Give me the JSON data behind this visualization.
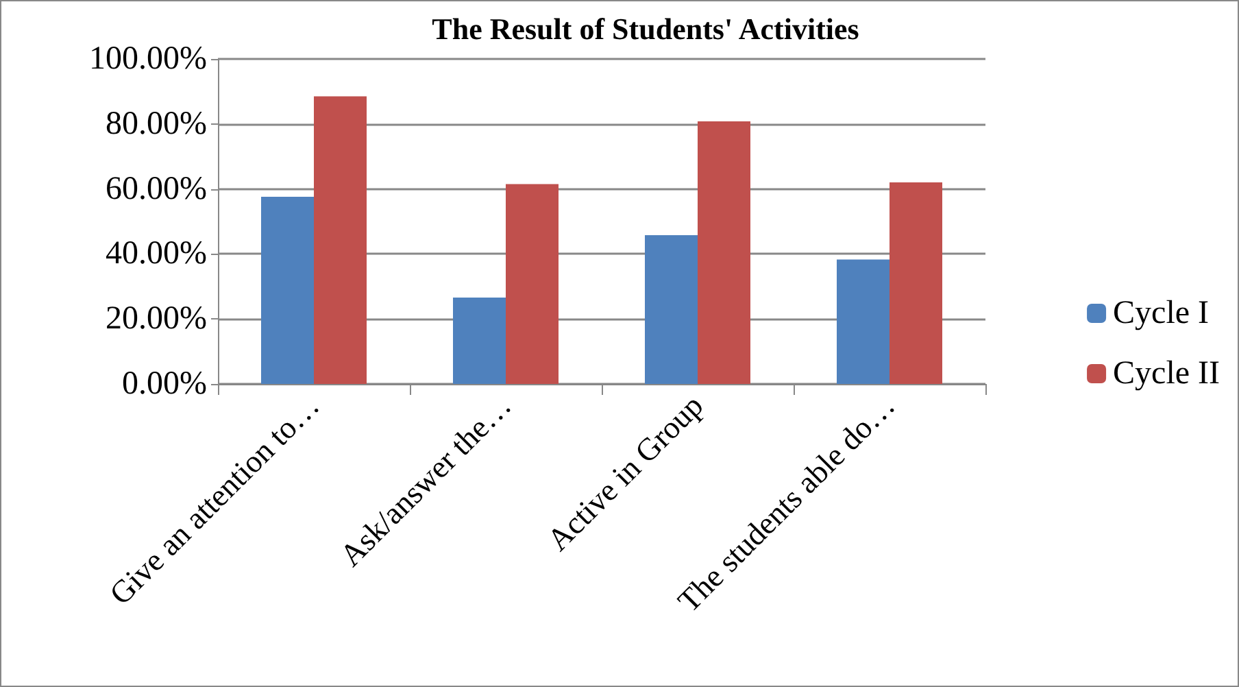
{
  "chart_data": {
    "type": "bar",
    "title": "The Result of Students' Activities",
    "categories": [
      "Give an attention to…",
      "Ask/answer the…",
      "Active in Group",
      "The students able do…"
    ],
    "series": [
      {
        "name": "Cycle I",
        "color": "#4f81bd",
        "values": [
          57.6,
          26.6,
          45.8,
          38.3
        ]
      },
      {
        "name": "Cycle II",
        "color": "#c0504d",
        "values": [
          88.5,
          61.5,
          80.8,
          62.0
        ]
      }
    ],
    "ylim": [
      0,
      100
    ],
    "yticks": [
      {
        "value": 0,
        "label": "0.00%"
      },
      {
        "value": 20,
        "label": "20.00%"
      },
      {
        "value": 40,
        "label": "40.00%"
      },
      {
        "value": 60,
        "label": "60.00%"
      },
      {
        "value": 80,
        "label": "80.00%"
      },
      {
        "value": 100,
        "label": "100.00%"
      }
    ],
    "grid": "y",
    "legend": "right"
  }
}
